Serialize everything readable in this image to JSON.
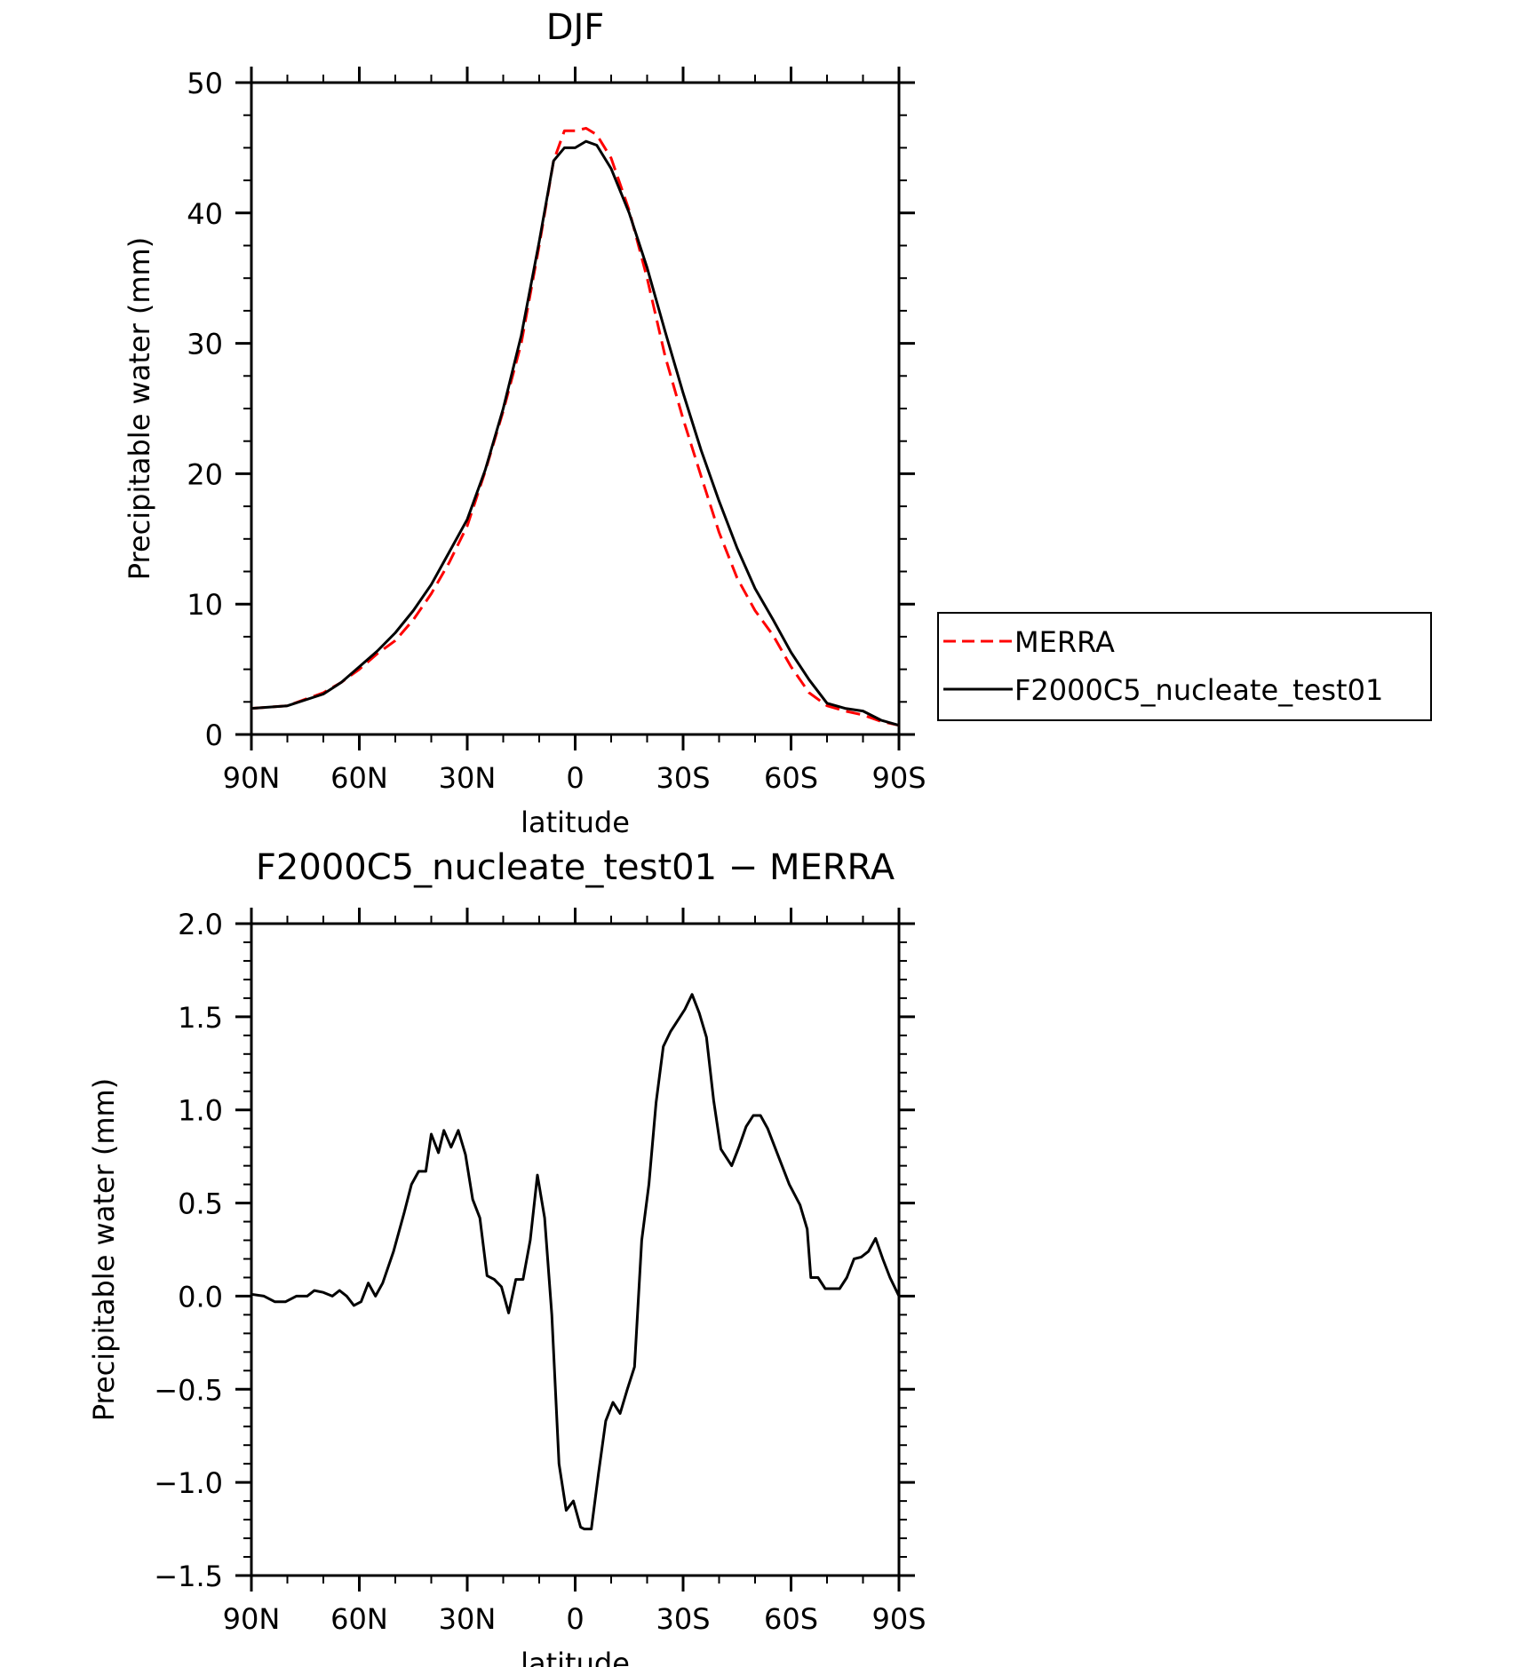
{
  "chart_data": [
    {
      "type": "line",
      "title": "DJF",
      "xlabel": "latitude",
      "ylabel": "Precipitable water (mm)",
      "xlim": [
        90,
        -90
      ],
      "ylim": [
        0,
        50
      ],
      "xticks": [
        90,
        60,
        30,
        0,
        -30,
        -60,
        -90
      ],
      "xtick_labels": [
        "90N",
        "60N",
        "30N",
        "0",
        "30S",
        "60S",
        "90S"
      ],
      "yticks": [
        0,
        10,
        20,
        30,
        40,
        50
      ],
      "ytick_labels": [
        "0",
        "10",
        "20",
        "30",
        "40",
        "50"
      ],
      "legend_position": "right",
      "series": [
        {
          "name": "MERRA",
          "color": "#ff0000",
          "dash": "dashed",
          "x": [
            90,
            80,
            70,
            65,
            60,
            55,
            50,
            45,
            40,
            35,
            30,
            25,
            20,
            15,
            10,
            6,
            3,
            1,
            0,
            -3,
            -6,
            -10,
            -15,
            -20,
            -25,
            -30,
            -35,
            -40,
            -45,
            -50,
            -55,
            -60,
            -65,
            -70,
            -75,
            -80,
            -85,
            -90
          ],
          "y": [
            2.0,
            2.2,
            3.2,
            4.0,
            5.0,
            6.2,
            7.2,
            8.8,
            10.8,
            13.2,
            16.0,
            20.2,
            24.8,
            30.0,
            37.5,
            44.0,
            46.3,
            46.3,
            46.3,
            46.5,
            46.0,
            44.2,
            40.2,
            35.0,
            29.0,
            24.2,
            19.8,
            15.5,
            12.0,
            9.5,
            7.6,
            5.2,
            3.2,
            2.2,
            1.8,
            1.5,
            1.0,
            0.7
          ]
        },
        {
          "name": "F2000C5_nucleate_test01",
          "color": "#000000",
          "dash": "solid",
          "x": [
            90,
            80,
            70,
            65,
            60,
            55,
            50,
            45,
            40,
            35,
            30,
            25,
            20,
            15,
            10,
            6,
            3,
            1,
            0,
            -3,
            -6,
            -10,
            -15,
            -20,
            -25,
            -30,
            -35,
            -40,
            -45,
            -50,
            -55,
            -60,
            -65,
            -70,
            -75,
            -80,
            -85,
            -90
          ],
          "y": [
            2.0,
            2.2,
            3.1,
            4.0,
            5.2,
            6.4,
            7.8,
            9.5,
            11.5,
            14.0,
            16.5,
            20.3,
            25.0,
            30.6,
            37.8,
            44.0,
            45.0,
            45.0,
            45.0,
            45.5,
            45.2,
            43.4,
            40.0,
            35.8,
            30.9,
            26.2,
            21.8,
            17.9,
            14.3,
            11.2,
            8.8,
            6.3,
            4.2,
            2.4,
            2.0,
            1.8,
            1.1,
            0.7
          ]
        }
      ]
    },
    {
      "type": "line",
      "title": "F2000C5_nucleate_test01 − MERRA",
      "xlabel": "latitude",
      "ylabel": "Precipitable water (mm)",
      "xlim": [
        90,
        -90
      ],
      "ylim": [
        -1.5,
        2.0
      ],
      "xticks": [
        90,
        60,
        30,
        0,
        -30,
        -60,
        -90
      ],
      "xtick_labels": [
        "90N",
        "60N",
        "30N",
        "0",
        "30S",
        "60S",
        "90S"
      ],
      "yticks": [
        -1.5,
        -1.0,
        -0.5,
        0.0,
        0.5,
        1.0,
        1.5,
        2.0
      ],
      "ytick_labels": [
        "−1.5",
        "−1.0",
        "−0.5",
        "0.0",
        "0.5",
        "1.0",
        "1.5",
        "2.0"
      ],
      "series": [
        {
          "color": "#000000",
          "dash": "solid",
          "x": [
            90,
            86.5,
            83.5,
            80.5,
            77.5,
            74.5,
            72.5,
            70,
            67.5,
            65.5,
            63.5,
            61.5,
            59.5,
            57.5,
            55.5,
            53.5,
            50.5,
            47.5,
            45.5,
            43.5,
            41.5,
            40,
            38,
            36.5,
            34.5,
            32.5,
            30.5,
            28.5,
            26.5,
            24.5,
            22.5,
            20.5,
            18.5,
            16.5,
            14.5,
            12.5,
            10.5,
            8.5,
            6.5,
            4.5,
            2.5,
            0.5,
            -1.5,
            -2.5,
            -4.5,
            -6.5,
            -8.5,
            -10.5,
            -12.5,
            -14.5,
            -16.5,
            -18.5,
            -20.5,
            -22.5,
            -24.5,
            -26.5,
            -28.5,
            -30.5,
            -32.5,
            -34.5,
            -36.5,
            -38.5,
            -40.5,
            -43.5,
            -45.5,
            -47.5,
            -49.5,
            -51.5,
            -53.5,
            -56.5,
            -59.5,
            -62.5,
            -64.5,
            -65.5,
            -67.5,
            -69.5,
            -71.5,
            -73.5,
            -75.5,
            -77.5,
            -79.5,
            -81.5,
            -83.5,
            -85.5,
            -87.5,
            -90
          ],
          "y": [
            0.01,
            0.0,
            -0.03,
            -0.03,
            0.0,
            0.0,
            0.03,
            0.02,
            0.0,
            0.03,
            0.0,
            -0.05,
            -0.03,
            0.07,
            0.0,
            0.07,
            0.24,
            0.45,
            0.6,
            0.67,
            0.67,
            0.87,
            0.77,
            0.89,
            0.8,
            0.89,
            0.76,
            0.52,
            0.42,
            0.11,
            0.09,
            0.05,
            -0.09,
            0.09,
            0.09,
            0.3,
            0.65,
            0.42,
            -0.1,
            -0.9,
            -1.15,
            -1.1,
            -1.24,
            -1.25,
            -1.25,
            -0.95,
            -0.67,
            -0.57,
            -0.63,
            -0.5,
            -0.38,
            0.3,
            0.6,
            1.04,
            1.34,
            1.42,
            1.48,
            1.54,
            1.62,
            1.52,
            1.39,
            1.05,
            0.79,
            0.7,
            0.8,
            0.91,
            0.97,
            0.97,
            0.9,
            0.75,
            0.6,
            0.49,
            0.36,
            0.1,
            0.1,
            0.04,
            0.04,
            0.04,
            0.1,
            0.2,
            0.21,
            0.24,
            0.31,
            0.2,
            0.1,
            0.0
          ]
        }
      ]
    }
  ]
}
